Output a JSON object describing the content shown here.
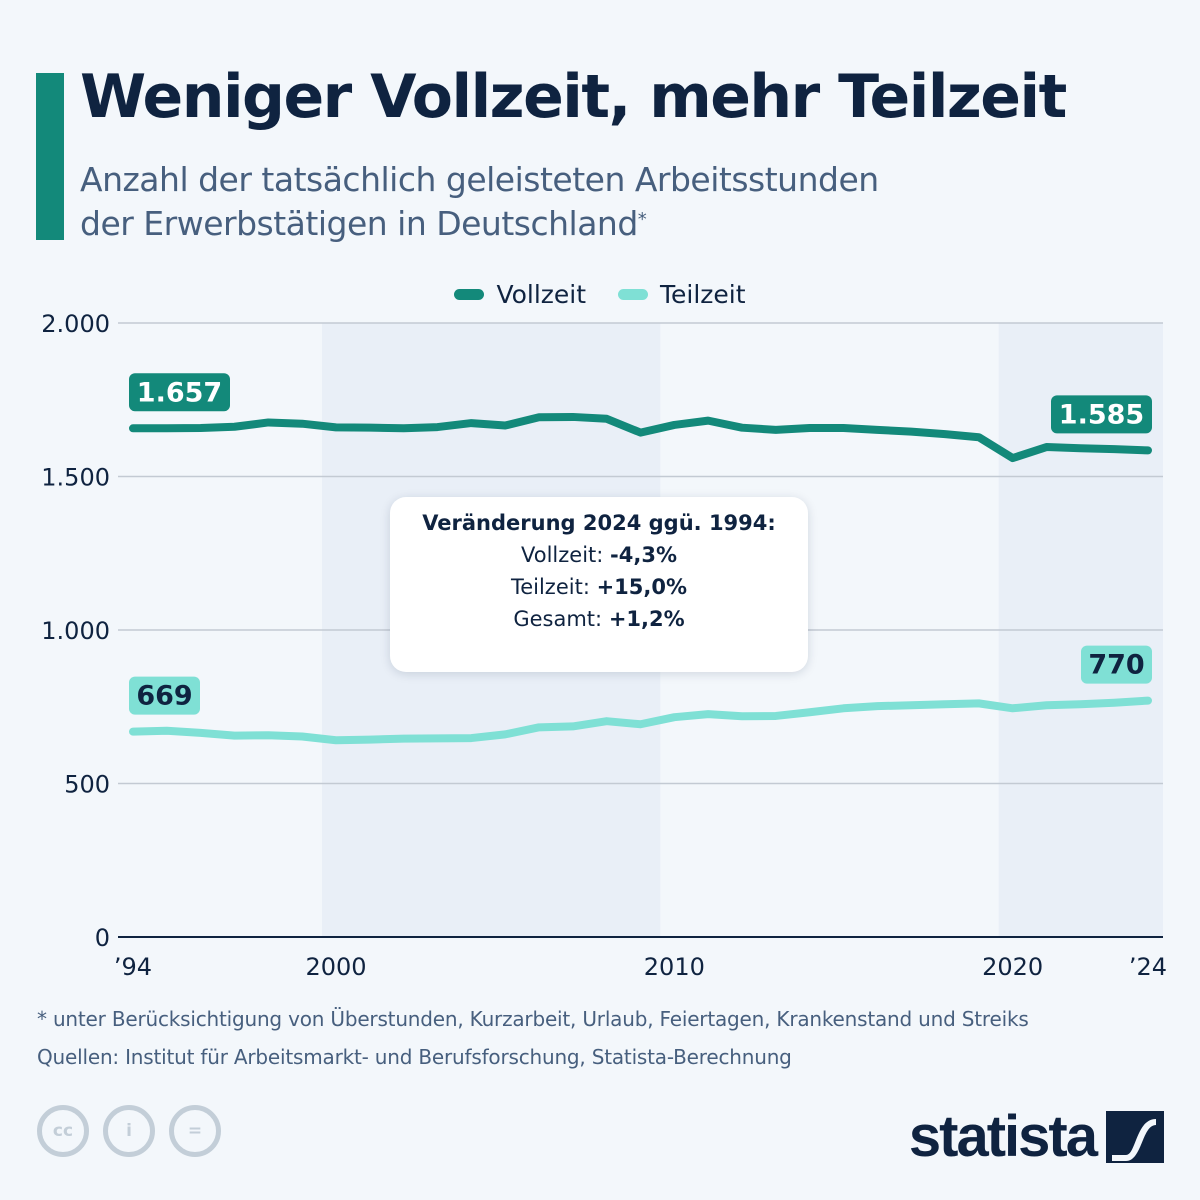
{
  "title": "Weniger Vollzeit, mehr Teilzeit",
  "subtitle_line1": "Anzahl der tatsächlich geleisteten Arbeitsstunden",
  "subtitle_line2": "der Erwerbstätigen in Deutschland",
  "subtitle_marker": "*",
  "legend": [
    {
      "label": "Vollzeit",
      "color": "#13897a"
    },
    {
      "label": "Teilzeit",
      "color": "#7fe0d5"
    }
  ],
  "callout": {
    "title": "Veränderung 2024 ggü. 1994:",
    "rows": [
      {
        "label": "Vollzeit:",
        "value": "-4,3%"
      },
      {
        "label": "Teilzeit:",
        "value": "+15,0%"
      },
      {
        "label": "Gesamt:",
        "value": "+1,2%"
      }
    ]
  },
  "footnote": "* unter Berücksichtigung von Überstunden, Kurzarbeit, Urlaub, Feiertagen, Krankenstand und Streiks",
  "source": "Quellen: Institut für Arbeitsmarkt- und Berufsforschung, Statista-Berechnung",
  "cc_icons": [
    "cc-icon",
    "attribution-icon",
    "no-derivatives-icon"
  ],
  "cc_labels": [
    "cc",
    "i",
    "="
  ],
  "logo_text": "statista",
  "chart_data": {
    "type": "line",
    "title": "Weniger Vollzeit, mehr Teilzeit",
    "xlabel": "",
    "ylabel": "",
    "x": [
      1994,
      1995,
      1996,
      1997,
      1998,
      1999,
      2000,
      2001,
      2002,
      2003,
      2004,
      2005,
      2006,
      2007,
      2008,
      2009,
      2010,
      2011,
      2012,
      2013,
      2014,
      2015,
      2016,
      2017,
      2018,
      2019,
      2020,
      2021,
      2022,
      2023,
      2024
    ],
    "x_tick_values": [
      1994,
      2000,
      2010,
      2020,
      2024
    ],
    "x_tick_labels": [
      "’94",
      "2000",
      "2010",
      "2020",
      "’24"
    ],
    "ylim": [
      0,
      2000
    ],
    "y_ticks": [
      0,
      500,
      1000,
      1500,
      2000
    ],
    "y_tick_labels": [
      "0",
      "500",
      "1.000",
      "1.500",
      "2.000"
    ],
    "grid": true,
    "shaded_bands": [
      [
        2000,
        2010
      ],
      [
        2020,
        2024
      ]
    ],
    "legend_position": "top-center",
    "series": [
      {
        "name": "Vollzeit",
        "color": "#13897a",
        "values": [
          1657,
          1657,
          1658,
          1662,
          1676,
          1672,
          1660,
          1659,
          1657,
          1661,
          1674,
          1666,
          1693,
          1694,
          1688,
          1643,
          1668,
          1682,
          1659,
          1652,
          1658,
          1658,
          1652,
          1646,
          1638,
          1628,
          1560,
          1596,
          1592,
          1589,
          1585
        ],
        "end_labels": {
          "first": "1.657",
          "last": "1.585"
        }
      },
      {
        "name": "Teilzeit",
        "color": "#7fe0d5",
        "values": [
          669,
          672,
          665,
          656,
          657,
          653,
          641,
          643,
          646,
          647,
          648,
          660,
          683,
          686,
          703,
          693,
          716,
          726,
          719,
          720,
          732,
          745,
          752,
          755,
          758,
          761,
          745,
          755,
          758,
          763,
          770
        ],
        "end_labels": {
          "first": "669",
          "last": "770"
        }
      }
    ]
  }
}
